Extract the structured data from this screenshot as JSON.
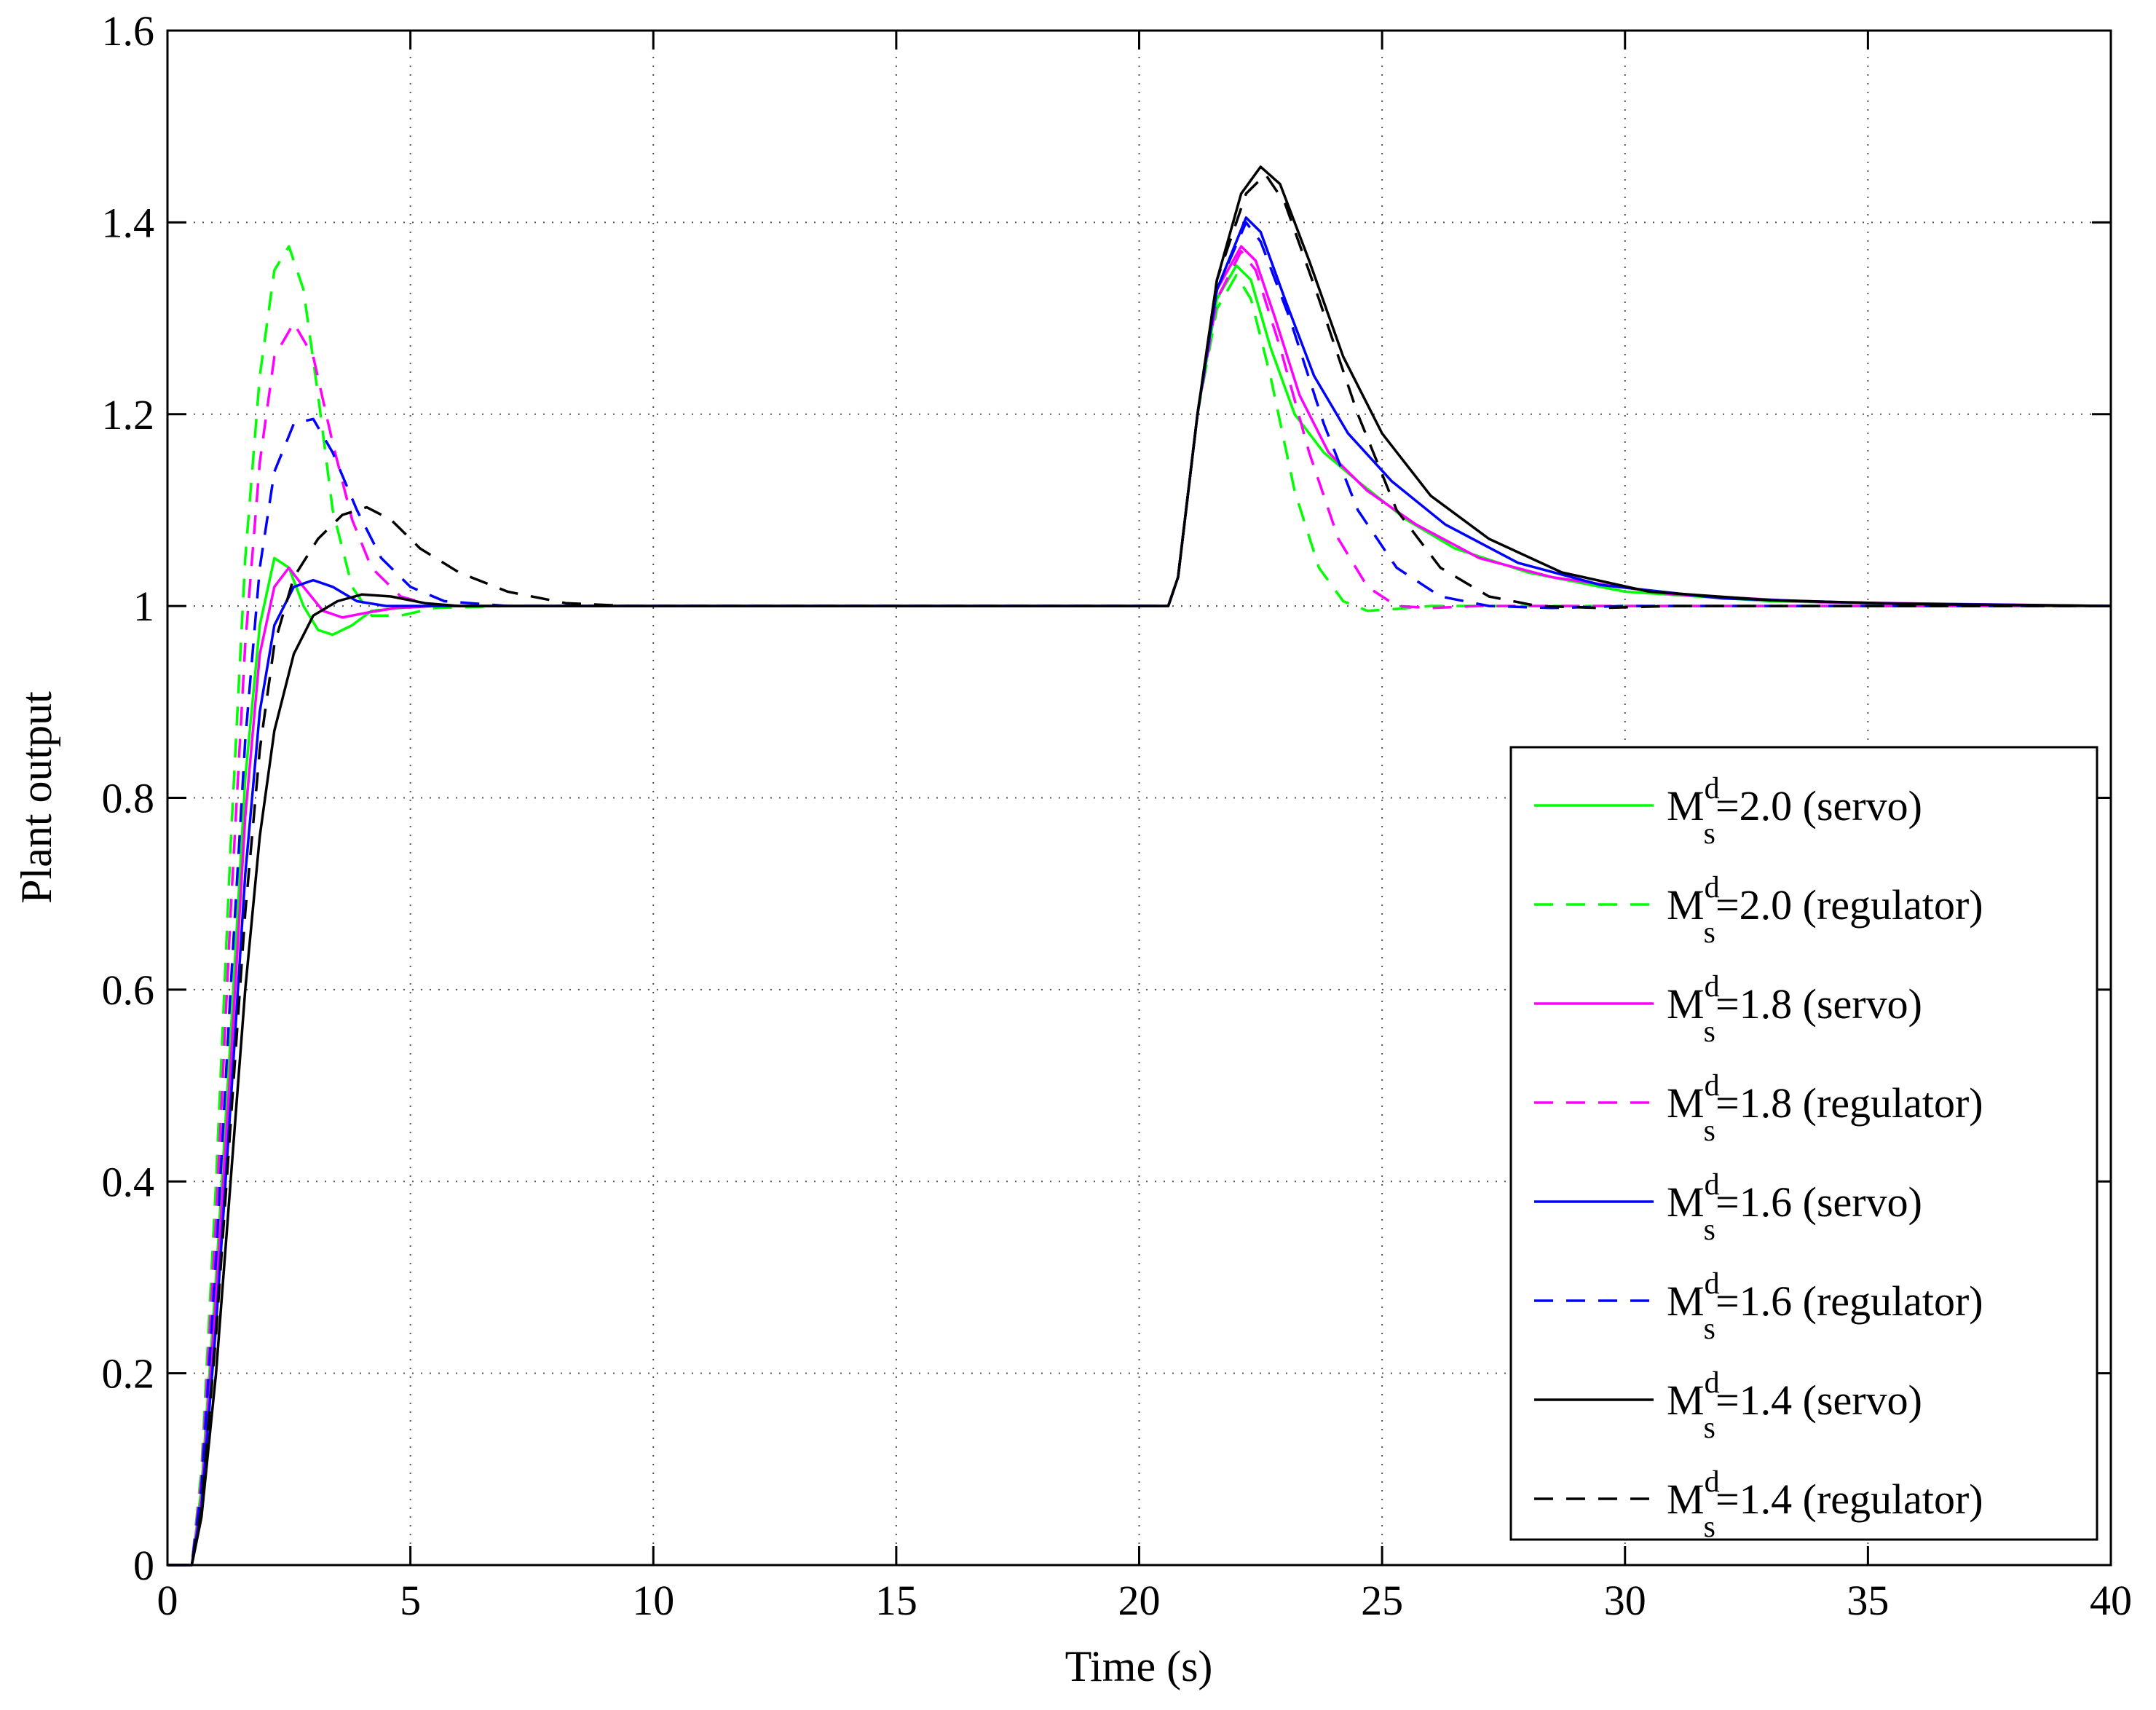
{
  "chart_data": {
    "type": "line",
    "title": "",
    "xlabel": "Time (s)",
    "ylabel": "Plant output",
    "xlim": [
      0,
      40
    ],
    "ylim": [
      0,
      1.6
    ],
    "xticks": [
      0,
      5,
      10,
      15,
      20,
      25,
      30,
      35,
      40
    ],
    "yticks": [
      0,
      0.2,
      0.4,
      0.6,
      0.8,
      1,
      1.2,
      1.4,
      1.6
    ],
    "xtick_labels": [
      "0",
      "5",
      "10",
      "15",
      "20",
      "25",
      "30",
      "35",
      "40"
    ],
    "ytick_labels": [
      "0",
      "0.2",
      "0.4",
      "0.6",
      "0.8",
      "1",
      "1.2",
      "1.4",
      "1.6"
    ],
    "grid": true,
    "legend_position": "right",
    "series": [
      {
        "name": "Md s=2.0 (servo)",
        "legend": {
          "base": "M",
          "sup": "d",
          "sub": "s",
          "rest": "=2.0 (servo)"
        },
        "color": "#00ff00",
        "style": "solid",
        "points": [
          [
            0,
            0
          ],
          [
            0.5,
            0
          ],
          [
            0.7,
            0.08
          ],
          [
            1,
            0.3
          ],
          [
            1.3,
            0.55
          ],
          [
            1.6,
            0.82
          ],
          [
            1.9,
            0.98
          ],
          [
            2.2,
            1.05
          ],
          [
            2.5,
            1.04
          ],
          [
            2.8,
            1.0
          ],
          [
            3.1,
            0.975
          ],
          [
            3.4,
            0.97
          ],
          [
            3.8,
            0.98
          ],
          [
            4.2,
            0.995
          ],
          [
            4.8,
            0.998
          ],
          [
            5.5,
            1.0
          ],
          [
            12,
            1.0
          ],
          [
            20.6,
            1.0
          ],
          [
            20.8,
            1.03
          ],
          [
            21.2,
            1.2
          ],
          [
            21.6,
            1.32
          ],
          [
            22.0,
            1.355
          ],
          [
            22.3,
            1.34
          ],
          [
            22.7,
            1.27
          ],
          [
            23.2,
            1.2
          ],
          [
            23.8,
            1.16
          ],
          [
            24.5,
            1.13
          ],
          [
            25.5,
            1.09
          ],
          [
            26.5,
            1.06
          ],
          [
            28,
            1.035
          ],
          [
            30,
            1.015
          ],
          [
            33,
            1.005
          ],
          [
            36,
            1.002
          ],
          [
            40,
            1.0
          ]
        ]
      },
      {
        "name": "Md s=2.0 (regulator)",
        "legend": {
          "base": "M",
          "sup": "d",
          "sub": "s",
          "rest": "=2.0 (regulator)"
        },
        "color": "#00ff00",
        "style": "dashed",
        "points": [
          [
            0,
            0
          ],
          [
            0.5,
            0
          ],
          [
            0.7,
            0.1
          ],
          [
            1,
            0.4
          ],
          [
            1.3,
            0.75
          ],
          [
            1.6,
            1.05
          ],
          [
            1.9,
            1.24
          ],
          [
            2.2,
            1.35
          ],
          [
            2.5,
            1.375
          ],
          [
            2.8,
            1.33
          ],
          [
            3.1,
            1.22
          ],
          [
            3.4,
            1.1
          ],
          [
            3.8,
            1.02
          ],
          [
            4.2,
            0.99
          ],
          [
            4.8,
            0.99
          ],
          [
            5.5,
            0.998
          ],
          [
            7,
            1.0
          ],
          [
            20.6,
            1.0
          ],
          [
            20.8,
            1.03
          ],
          [
            21.2,
            1.2
          ],
          [
            21.6,
            1.31
          ],
          [
            22.0,
            1.345
          ],
          [
            22.3,
            1.32
          ],
          [
            22.7,
            1.24
          ],
          [
            23.2,
            1.12
          ],
          [
            23.7,
            1.04
          ],
          [
            24.2,
            1.005
          ],
          [
            24.7,
            0.995
          ],
          [
            25.3,
            0.997
          ],
          [
            26,
            1.0
          ],
          [
            40,
            1.0
          ]
        ]
      },
      {
        "name": "Md s=1.8 (servo)",
        "legend": {
          "base": "M",
          "sup": "d",
          "sub": "s",
          "rest": "=1.8 (servo)"
        },
        "color": "#ff00ff",
        "style": "solid",
        "points": [
          [
            0,
            0
          ],
          [
            0.5,
            0
          ],
          [
            0.7,
            0.07
          ],
          [
            1,
            0.28
          ],
          [
            1.3,
            0.52
          ],
          [
            1.6,
            0.78
          ],
          [
            1.9,
            0.95
          ],
          [
            2.2,
            1.02
          ],
          [
            2.5,
            1.04
          ],
          [
            2.8,
            1.02
          ],
          [
            3.2,
            0.995
          ],
          [
            3.6,
            0.988
          ],
          [
            4.1,
            0.993
          ],
          [
            4.7,
            0.998
          ],
          [
            5.5,
            1.0
          ],
          [
            20.6,
            1.0
          ],
          [
            20.8,
            1.03
          ],
          [
            21.2,
            1.2
          ],
          [
            21.6,
            1.33
          ],
          [
            22.1,
            1.375
          ],
          [
            22.4,
            1.36
          ],
          [
            22.8,
            1.3
          ],
          [
            23.3,
            1.22
          ],
          [
            23.9,
            1.16
          ],
          [
            24.7,
            1.12
          ],
          [
            25.7,
            1.085
          ],
          [
            27,
            1.05
          ],
          [
            28.5,
            1.03
          ],
          [
            31,
            1.012
          ],
          [
            34,
            1.004
          ],
          [
            40,
            1.0
          ]
        ]
      },
      {
        "name": "Md s=1.8 (regulator)",
        "legend": {
          "base": "M",
          "sup": "d",
          "sub": "s",
          "rest": "=1.8 (regulator)"
        },
        "color": "#ff00ff",
        "style": "dashed",
        "points": [
          [
            0,
            0
          ],
          [
            0.5,
            0
          ],
          [
            0.7,
            0.09
          ],
          [
            1,
            0.36
          ],
          [
            1.3,
            0.68
          ],
          [
            1.6,
            0.96
          ],
          [
            1.9,
            1.15
          ],
          [
            2.2,
            1.26
          ],
          [
            2.6,
            1.295
          ],
          [
            3.0,
            1.26
          ],
          [
            3.4,
            1.17
          ],
          [
            3.8,
            1.09
          ],
          [
            4.2,
            1.04
          ],
          [
            4.8,
            1.01
          ],
          [
            5.5,
            1.0
          ],
          [
            7,
            1.0
          ],
          [
            20.6,
            1.0
          ],
          [
            20.8,
            1.03
          ],
          [
            21.2,
            1.2
          ],
          [
            21.6,
            1.32
          ],
          [
            22.1,
            1.37
          ],
          [
            22.4,
            1.35
          ],
          [
            22.9,
            1.27
          ],
          [
            23.5,
            1.16
          ],
          [
            24.1,
            1.07
          ],
          [
            24.7,
            1.02
          ],
          [
            25.3,
            1.0
          ],
          [
            26,
            0.998
          ],
          [
            27,
            1.0
          ],
          [
            40,
            1.0
          ]
        ]
      },
      {
        "name": "Md s=1.6 (servo)",
        "legend": {
          "base": "M",
          "sup": "d",
          "sub": "s",
          "rest": "=1.6 (servo)"
        },
        "color": "#0000ff",
        "style": "solid",
        "points": [
          [
            0,
            0
          ],
          [
            0.5,
            0
          ],
          [
            0.7,
            0.06
          ],
          [
            1,
            0.25
          ],
          [
            1.3,
            0.48
          ],
          [
            1.6,
            0.72
          ],
          [
            1.9,
            0.89
          ],
          [
            2.2,
            0.98
          ],
          [
            2.6,
            1.02
          ],
          [
            3.0,
            1.027
          ],
          [
            3.4,
            1.02
          ],
          [
            3.9,
            1.005
          ],
          [
            4.5,
            1.0
          ],
          [
            5.5,
            1.0
          ],
          [
            20.6,
            1.0
          ],
          [
            20.8,
            1.03
          ],
          [
            21.2,
            1.2
          ],
          [
            21.6,
            1.33
          ],
          [
            22.2,
            1.405
          ],
          [
            22.5,
            1.39
          ],
          [
            23.0,
            1.32
          ],
          [
            23.6,
            1.24
          ],
          [
            24.3,
            1.18
          ],
          [
            25.2,
            1.13
          ],
          [
            26.3,
            1.085
          ],
          [
            27.8,
            1.045
          ],
          [
            29.5,
            1.022
          ],
          [
            32,
            1.008
          ],
          [
            35,
            1.003
          ],
          [
            40,
            1.0
          ]
        ]
      },
      {
        "name": "Md s=1.6 (regulator)",
        "legend": {
          "base": "M",
          "sup": "d",
          "sub": "s",
          "rest": "=1.6 (regulator)"
        },
        "color": "#0000ff",
        "style": "dashed",
        "points": [
          [
            0,
            0
          ],
          [
            0.5,
            0
          ],
          [
            0.7,
            0.08
          ],
          [
            1,
            0.32
          ],
          [
            1.3,
            0.6
          ],
          [
            1.6,
            0.86
          ],
          [
            1.9,
            1.04
          ],
          [
            2.2,
            1.14
          ],
          [
            2.6,
            1.19
          ],
          [
            3.0,
            1.195
          ],
          [
            3.4,
            1.16
          ],
          [
            3.9,
            1.1
          ],
          [
            4.4,
            1.05
          ],
          [
            5.0,
            1.02
          ],
          [
            5.7,
            1.005
          ],
          [
            7,
            1.0
          ],
          [
            20.6,
            1.0
          ],
          [
            20.8,
            1.03
          ],
          [
            21.2,
            1.2
          ],
          [
            21.6,
            1.33
          ],
          [
            22.2,
            1.4
          ],
          [
            22.5,
            1.38
          ],
          [
            23.1,
            1.3
          ],
          [
            23.8,
            1.19
          ],
          [
            24.5,
            1.1
          ],
          [
            25.3,
            1.04
          ],
          [
            26.2,
            1.01
          ],
          [
            27.2,
            1.0
          ],
          [
            28.5,
            0.998
          ],
          [
            30,
            1.0
          ],
          [
            40,
            1.0
          ]
        ]
      },
      {
        "name": "Md s=1.4 (servo)",
        "legend": {
          "base": "M",
          "sup": "d",
          "sub": "s",
          "rest": "=1.4 (servo)"
        },
        "color": "#000000",
        "style": "solid",
        "points": [
          [
            0,
            0
          ],
          [
            0.5,
            0
          ],
          [
            0.7,
            0.05
          ],
          [
            1,
            0.2
          ],
          [
            1.3,
            0.4
          ],
          [
            1.6,
            0.6
          ],
          [
            1.9,
            0.76
          ],
          [
            2.2,
            0.87
          ],
          [
            2.6,
            0.95
          ],
          [
            3.0,
            0.99
          ],
          [
            3.5,
            1.005
          ],
          [
            4.0,
            1.012
          ],
          [
            4.6,
            1.01
          ],
          [
            5.3,
            1.003
          ],
          [
            6,
            1.0
          ],
          [
            20.6,
            1.0
          ],
          [
            20.8,
            1.03
          ],
          [
            21.2,
            1.2
          ],
          [
            21.6,
            1.34
          ],
          [
            22.1,
            1.43
          ],
          [
            22.5,
            1.458
          ],
          [
            22.9,
            1.44
          ],
          [
            23.5,
            1.36
          ],
          [
            24.2,
            1.26
          ],
          [
            25.0,
            1.18
          ],
          [
            26.0,
            1.115
          ],
          [
            27.2,
            1.07
          ],
          [
            28.7,
            1.035
          ],
          [
            30.5,
            1.015
          ],
          [
            33,
            1.006
          ],
          [
            36,
            1.002
          ],
          [
            40,
            1.0
          ]
        ]
      },
      {
        "name": "Md s=1.4 (regulator)",
        "legend": {
          "base": "M",
          "sup": "d",
          "sub": "s",
          "rest": "=1.4 (regulator)"
        },
        "color": "#000000",
        "style": "dashed",
        "points": [
          [
            0,
            0
          ],
          [
            0.5,
            0
          ],
          [
            0.7,
            0.06
          ],
          [
            1,
            0.24
          ],
          [
            1.3,
            0.46
          ],
          [
            1.6,
            0.68
          ],
          [
            1.9,
            0.85
          ],
          [
            2.2,
            0.96
          ],
          [
            2.6,
            1.03
          ],
          [
            3.1,
            1.07
          ],
          [
            3.6,
            1.095
          ],
          [
            4.1,
            1.103
          ],
          [
            4.6,
            1.09
          ],
          [
            5.2,
            1.06
          ],
          [
            6,
            1.035
          ],
          [
            7,
            1.015
          ],
          [
            8.2,
            1.003
          ],
          [
            9.5,
            1.0
          ],
          [
            20.6,
            1.0
          ],
          [
            20.8,
            1.03
          ],
          [
            21.2,
            1.2
          ],
          [
            21.6,
            1.34
          ],
          [
            22.2,
            1.43
          ],
          [
            22.6,
            1.45
          ],
          [
            23.0,
            1.42
          ],
          [
            23.7,
            1.32
          ],
          [
            24.5,
            1.2
          ],
          [
            25.3,
            1.1
          ],
          [
            26.2,
            1.04
          ],
          [
            27.2,
            1.01
          ],
          [
            28.2,
            1.0
          ],
          [
            29.5,
            0.998
          ],
          [
            31,
            1.0
          ],
          [
            40,
            1.0
          ]
        ]
      }
    ]
  }
}
